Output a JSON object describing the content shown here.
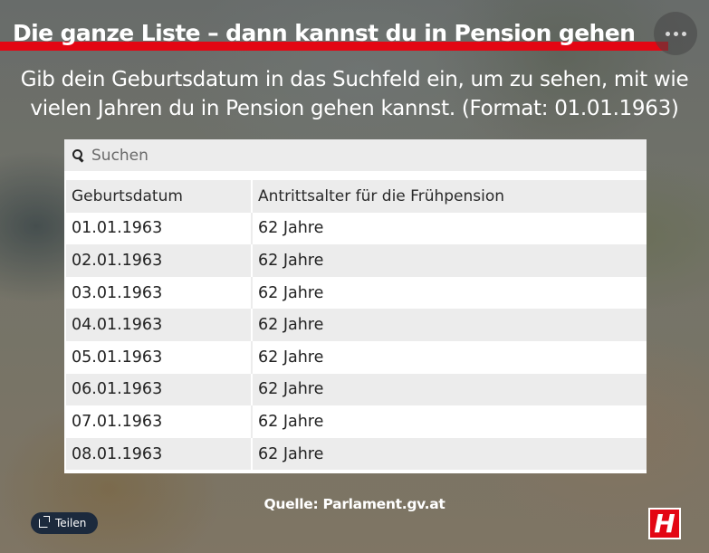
{
  "header": {
    "title": "Die ganze Liste – dann kannst du in Pension gehen",
    "more_icon": "more-horizontal-icon",
    "accent_color": "#e30613"
  },
  "intro": {
    "text": "Gib dein Geburtsdatum in das Suchfeld ein, um zu sehen, mit wie vielen Jahren du in Pension gehen kannst. (Format: 01.01.1963)"
  },
  "search": {
    "placeholder": "Suchen",
    "value": ""
  },
  "table": {
    "columns": [
      "Geburtsdatum",
      "Antrittsalter für die Frühpension"
    ],
    "rows": [
      [
        "01.01.1963",
        "62 Jahre"
      ],
      [
        "02.01.1963",
        "62 Jahre"
      ],
      [
        "03.01.1963",
        "62 Jahre"
      ],
      [
        "04.01.1963",
        "62 Jahre"
      ],
      [
        "05.01.1963",
        "62 Jahre"
      ],
      [
        "06.01.1963",
        "62 Jahre"
      ],
      [
        "07.01.1963",
        "62 Jahre"
      ],
      [
        "08.01.1963",
        "62 Jahre"
      ]
    ]
  },
  "footer": {
    "source": "Quelle: Parlament.gv.at",
    "share_label": "Teilen",
    "logo_text": "H"
  }
}
